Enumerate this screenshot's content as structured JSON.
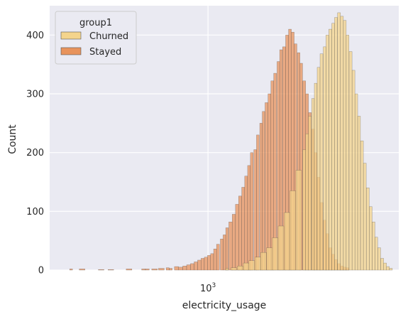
{
  "chart_data": {
    "type": "histogram",
    "xscale": "log",
    "xlabel": "electricity_usage",
    "ylabel": "Count",
    "ylim": [
      0,
      450
    ],
    "xlim": [
      220,
      6200
    ],
    "x_ticks": [
      {
        "value": 1000,
        "base": "10",
        "exp": "3"
      }
    ],
    "y_ticks": [
      0,
      100,
      200,
      300,
      400
    ],
    "grid": true,
    "legend": {
      "title": "group1",
      "position": "top-left",
      "entries": [
        {
          "label": "Churned",
          "color": "#f4d48c"
        },
        {
          "label": "Stayed",
          "color": "#e8935c"
        }
      ]
    },
    "series": [
      {
        "name": "Stayed",
        "color": "#e8935c",
        "bins": [
          [
            270,
            2
          ],
          [
            300,
            2
          ],
          [
            360,
            1
          ],
          [
            395,
            1
          ],
          [
            470,
            2
          ],
          [
            540,
            2
          ],
          [
            560,
            2
          ],
          [
            600,
            2
          ],
          [
            640,
            3
          ],
          [
            680,
            4
          ],
          [
            700,
            3
          ],
          [
            740,
            6
          ],
          [
            770,
            5
          ],
          [
            800,
            7
          ],
          [
            830,
            9
          ],
          [
            860,
            11
          ],
          [
            890,
            14
          ],
          [
            920,
            17
          ],
          [
            950,
            20
          ],
          [
            980,
            22
          ],
          [
            1010,
            25
          ],
          [
            1040,
            28
          ],
          [
            1070,
            36
          ],
          [
            1100,
            44
          ],
          [
            1140,
            53
          ],
          [
            1170,
            60
          ],
          [
            1200,
            72
          ],
          [
            1240,
            82
          ],
          [
            1280,
            95
          ],
          [
            1320,
            112
          ],
          [
            1360,
            126
          ],
          [
            1400,
            141
          ],
          [
            1440,
            160
          ],
          [
            1480,
            178
          ],
          [
            1520,
            200
          ],
          [
            1570,
            205
          ],
          [
            1610,
            230
          ],
          [
            1660,
            250
          ],
          [
            1700,
            270
          ],
          [
            1750,
            285
          ],
          [
            1800,
            300
          ],
          [
            1850,
            322
          ],
          [
            1900,
            335
          ],
          [
            1960,
            355
          ],
          [
            2010,
            375
          ],
          [
            2070,
            380
          ],
          [
            2130,
            400
          ],
          [
            2190,
            410
          ],
          [
            2250,
            405
          ],
          [
            2310,
            385
          ],
          [
            2380,
            370
          ],
          [
            2440,
            352
          ],
          [
            2510,
            322
          ],
          [
            2580,
            300
          ],
          [
            2650,
            268
          ],
          [
            2730,
            240
          ],
          [
            2800,
            200
          ],
          [
            2880,
            158
          ],
          [
            2960,
            115
          ],
          [
            3050,
            85
          ],
          [
            3130,
            62
          ],
          [
            3220,
            38
          ],
          [
            3310,
            27
          ],
          [
            3400,
            18
          ],
          [
            3500,
            11
          ],
          [
            3600,
            7
          ],
          [
            3700,
            5
          ],
          [
            3800,
            4
          ]
        ]
      },
      {
        "name": "Churned",
        "color": "#f4d48c",
        "bins": [
          [
            1200,
            3
          ],
          [
            1280,
            4
          ],
          [
            1360,
            7
          ],
          [
            1440,
            12
          ],
          [
            1520,
            16
          ],
          [
            1610,
            22
          ],
          [
            1700,
            30
          ],
          [
            1800,
            38
          ],
          [
            1900,
            55
          ],
          [
            2010,
            75
          ],
          [
            2130,
            98
          ],
          [
            2250,
            135
          ],
          [
            2380,
            170
          ],
          [
            2510,
            205
          ],
          [
            2580,
            232
          ],
          [
            2650,
            262
          ],
          [
            2730,
            292
          ],
          [
            2800,
            318
          ],
          [
            2880,
            345
          ],
          [
            2960,
            368
          ],
          [
            3050,
            380
          ],
          [
            3130,
            400
          ],
          [
            3220,
            410
          ],
          [
            3310,
            420
          ],
          [
            3400,
            430
          ],
          [
            3500,
            438
          ],
          [
            3600,
            432
          ],
          [
            3700,
            425
          ],
          [
            3800,
            400
          ],
          [
            3910,
            372
          ],
          [
            4020,
            340
          ],
          [
            4130,
            300
          ],
          [
            4240,
            262
          ],
          [
            4360,
            220
          ],
          [
            4480,
            182
          ],
          [
            4610,
            140
          ],
          [
            4740,
            108
          ],
          [
            4870,
            82
          ],
          [
            5000,
            56
          ],
          [
            5140,
            38
          ],
          [
            5290,
            20
          ],
          [
            5440,
            12
          ],
          [
            5590,
            6
          ],
          [
            5750,
            3
          ]
        ]
      }
    ]
  }
}
